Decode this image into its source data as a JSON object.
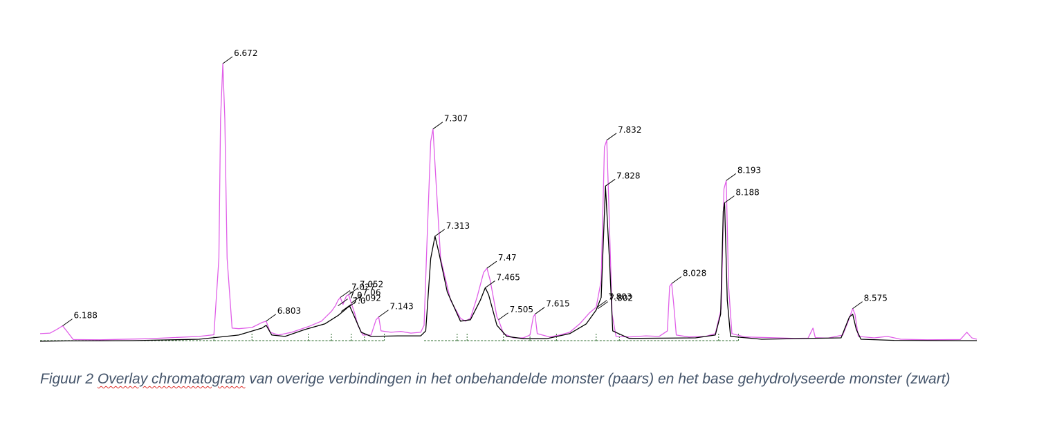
{
  "chart_data": {
    "type": "line",
    "title": "",
    "xlabel": "",
    "ylabel": "",
    "xlim": [
      6.12,
      8.95
    ],
    "ylim": [
      0,
      100
    ],
    "grid": false,
    "legend": "none",
    "series": [
      {
        "color": "#e05fe8",
        "points": [
          [
            6.12,
            3.0
          ],
          [
            6.15,
            3.2
          ],
          [
            6.17,
            4.5
          ],
          [
            6.188,
            5.8
          ],
          [
            6.2,
            4.0
          ],
          [
            6.22,
            0.9
          ],
          [
            6.3,
            0.8
          ],
          [
            6.45,
            1.2
          ],
          [
            6.6,
            2.0
          ],
          [
            6.645,
            2.6
          ],
          [
            6.66,
            30.0
          ],
          [
            6.665,
            80.0
          ],
          [
            6.672,
            100.0
          ],
          [
            6.678,
            80.0
          ],
          [
            6.685,
            30.0
          ],
          [
            6.7,
            5.0
          ],
          [
            6.72,
            4.8
          ],
          [
            6.76,
            5.2
          ],
          [
            6.79,
            7.0
          ],
          [
            6.803,
            7.5
          ],
          [
            6.815,
            3.5
          ],
          [
            6.84,
            2.5
          ],
          [
            6.88,
            3.5
          ],
          [
            6.93,
            5.5
          ],
          [
            6.97,
            7.5
          ],
          [
            7.0,
            11.0
          ],
          [
            7.012,
            13.0
          ],
          [
            7.02,
            15.0
          ],
          [
            7.027,
            16.0
          ],
          [
            7.035,
            13.5
          ],
          [
            7.045,
            16.5
          ],
          [
            7.052,
            17.0
          ],
          [
            7.06,
            14.0
          ],
          [
            7.07,
            10.5
          ],
          [
            7.08,
            6.0
          ],
          [
            7.095,
            2.5
          ],
          [
            7.12,
            2.5
          ],
          [
            7.135,
            8.0
          ],
          [
            7.143,
            9.0
          ],
          [
            7.15,
            4.0
          ],
          [
            7.18,
            3.5
          ],
          [
            7.21,
            3.8
          ],
          [
            7.24,
            3.2
          ],
          [
            7.27,
            3.5
          ],
          [
            7.28,
            6.0
          ],
          [
            7.29,
            40.0
          ],
          [
            7.3,
            72.0
          ],
          [
            7.307,
            76.5
          ],
          [
            7.315,
            60.0
          ],
          [
            7.33,
            30.0
          ],
          [
            7.36,
            15.0
          ],
          [
            7.39,
            8.5
          ],
          [
            7.405,
            7.5
          ],
          [
            7.42,
            8.5
          ],
          [
            7.44,
            16.0
          ],
          [
            7.46,
            25.0
          ],
          [
            7.47,
            26.5
          ],
          [
            7.48,
            22.0
          ],
          [
            7.5,
            9.0
          ],
          [
            7.505,
            8.0
          ],
          [
            7.52,
            3.0
          ],
          [
            7.55,
            1.5
          ],
          [
            7.58,
            1.5
          ],
          [
            7.6,
            2.5
          ],
          [
            7.61,
            9.0
          ],
          [
            7.615,
            10.0
          ],
          [
            7.622,
            3.0
          ],
          [
            7.66,
            1.8
          ],
          [
            7.69,
            2.5
          ],
          [
            7.72,
            3.5
          ],
          [
            7.75,
            6.5
          ],
          [
            7.78,
            10.5
          ],
          [
            7.8,
            12.5
          ],
          [
            7.815,
            22.0
          ],
          [
            7.825,
            70.0
          ],
          [
            7.832,
            72.5
          ],
          [
            7.838,
            50.0
          ],
          [
            7.848,
            10.0
          ],
          [
            7.86,
            2.0
          ],
          [
            7.9,
            1.8
          ],
          [
            7.95,
            2.2
          ],
          [
            7.99,
            2.0
          ],
          [
            8.015,
            4.0
          ],
          [
            8.022,
            20.0
          ],
          [
            8.028,
            21.0
          ],
          [
            8.034,
            14.0
          ],
          [
            8.042,
            2.5
          ],
          [
            8.08,
            1.8
          ],
          [
            8.13,
            2.0
          ],
          [
            8.16,
            3.0
          ],
          [
            8.178,
            12.0
          ],
          [
            8.186,
            55.0
          ],
          [
            8.193,
            58.0
          ],
          [
            8.2,
            20.0
          ],
          [
            8.21,
            3.0
          ],
          [
            8.25,
            1.8
          ],
          [
            8.35,
            1.5
          ],
          [
            8.4,
            1.3
          ],
          [
            8.44,
            1.4
          ],
          [
            8.455,
            5.0
          ],
          [
            8.462,
            1.6
          ],
          [
            8.5,
            1.4
          ],
          [
            8.545,
            2.5
          ],
          [
            8.56,
            7.0
          ],
          [
            8.575,
            12.0
          ],
          [
            8.582,
            10.0
          ],
          [
            8.592,
            2.0
          ],
          [
            8.64,
            1.5
          ],
          [
            8.68,
            2.0
          ],
          [
            8.72,
            1.0
          ],
          [
            8.8,
            0.8
          ],
          [
            8.9,
            0.9
          ],
          [
            8.92,
            3.5
          ],
          [
            8.935,
            1.5
          ],
          [
            8.95,
            1.0
          ]
        ]
      },
      {
        "color": "#000000",
        "points": [
          [
            6.12,
            0.3
          ],
          [
            6.2,
            0.4
          ],
          [
            6.4,
            0.5
          ],
          [
            6.6,
            1.0
          ],
          [
            6.72,
            2.5
          ],
          [
            6.79,
            5.0
          ],
          [
            6.803,
            6.0
          ],
          [
            6.82,
            2.5
          ],
          [
            6.86,
            2.0
          ],
          [
            6.92,
            4.5
          ],
          [
            6.98,
            6.5
          ],
          [
            7.02,
            9.5
          ],
          [
            7.04,
            11.5
          ],
          [
            7.055,
            13.0
          ],
          [
            7.07,
            9.0
          ],
          [
            7.09,
            3.5
          ],
          [
            7.12,
            2.0
          ],
          [
            7.2,
            2.2
          ],
          [
            7.27,
            2.2
          ],
          [
            7.285,
            4.0
          ],
          [
            7.3,
            30.0
          ],
          [
            7.313,
            38.0
          ],
          [
            7.325,
            32.0
          ],
          [
            7.35,
            18.0
          ],
          [
            7.39,
            7.5
          ],
          [
            7.42,
            8.0
          ],
          [
            7.45,
            15.0
          ],
          [
            7.465,
            19.5
          ],
          [
            7.475,
            17.0
          ],
          [
            7.5,
            6.0
          ],
          [
            7.53,
            2.0
          ],
          [
            7.58,
            1.2
          ],
          [
            7.65,
            1.2
          ],
          [
            7.72,
            3.0
          ],
          [
            7.77,
            6.5
          ],
          [
            7.8,
            11.5
          ],
          [
            7.815,
            16.0
          ],
          [
            7.828,
            56.0
          ],
          [
            7.84,
            30.0
          ],
          [
            7.85,
            4.0
          ],
          [
            7.9,
            1.3
          ],
          [
            8.1,
            1.5
          ],
          [
            8.16,
            2.5
          ],
          [
            8.176,
            10.0
          ],
          [
            8.184,
            47.0
          ],
          [
            8.188,
            50.0
          ],
          [
            8.196,
            15.0
          ],
          [
            8.206,
            2.0
          ],
          [
            8.3,
            1.0
          ],
          [
            8.54,
            1.5
          ],
          [
            8.565,
            9.0
          ],
          [
            8.575,
            10.0
          ],
          [
            8.586,
            4.5
          ],
          [
            8.6,
            1.0
          ],
          [
            8.7,
            0.6
          ],
          [
            8.9,
            0.5
          ],
          [
            8.95,
            0.5
          ]
        ]
      }
    ],
    "annotations": [
      {
        "label": "6.188",
        "x": 6.188,
        "y": 5.8
      },
      {
        "label": "6.672",
        "x": 6.672,
        "y": 100.0
      },
      {
        "label": "6.803",
        "x": 6.803,
        "y": 7.5
      },
      {
        "label": "7.027",
        "x": 7.027,
        "y": 16.0
      },
      {
        "label": "7.06",
        "x": 7.06,
        "y": 14.0
      },
      {
        "label": "7.052",
        "x": 7.052,
        "y": 17.0
      },
      {
        "label": "7.0",
        "x": 7.02,
        "y": 13.0
      },
      {
        "label": "7.092",
        "x": 7.045,
        "y": 12.0
      },
      {
        "label": "7.0",
        "x": 7.03,
        "y": 11.0
      },
      {
        "label": "7.143",
        "x": 7.143,
        "y": 9.0
      },
      {
        "label": "7.307",
        "x": 7.307,
        "y": 76.5
      },
      {
        "label": "7.313",
        "x": 7.313,
        "y": 38.0
      },
      {
        "label": "7.47",
        "x": 7.47,
        "y": 26.5
      },
      {
        "label": "7.465",
        "x": 7.465,
        "y": 19.5
      },
      {
        "label": "7.505",
        "x": 7.505,
        "y": 8.0
      },
      {
        "label": "7.615",
        "x": 7.615,
        "y": 10.0
      },
      {
        "label": "7.803",
        "x": 7.803,
        "y": 12.5
      },
      {
        "label": "7.802",
        "x": 7.806,
        "y": 12.0
      },
      {
        "label": "7.832",
        "x": 7.832,
        "y": 72.5
      },
      {
        "label": "7.828",
        "x": 7.828,
        "y": 56.0
      },
      {
        "label": "8.028",
        "x": 8.028,
        "y": 21.0
      },
      {
        "label": "8.193",
        "x": 8.193,
        "y": 58.0
      },
      {
        "label": "8.188",
        "x": 8.188,
        "y": 50.0
      },
      {
        "label": "8.575",
        "x": 8.575,
        "y": 12.0
      }
    ],
    "baseline_segments": [
      [
        6.12,
        6.645
      ],
      [
        6.645,
        6.76
      ],
      [
        6.76,
        6.93
      ],
      [
        6.93,
        7.0
      ],
      [
        7.0,
        7.06
      ],
      [
        7.06,
        7.1
      ],
      [
        7.1,
        7.16
      ],
      [
        7.28,
        7.38
      ],
      [
        7.38,
        7.41
      ],
      [
        7.41,
        7.52
      ],
      [
        7.52,
        7.6
      ],
      [
        7.6,
        7.68
      ],
      [
        7.68,
        7.8
      ],
      [
        7.8,
        7.87
      ],
      [
        7.87,
        8.17
      ],
      [
        8.17,
        8.23
      ]
    ]
  },
  "caption": {
    "prefix": "Figuur 2 ",
    "misspelled": "Overlay chromatogram",
    "rest": " van overige verbindingen in het onbehandelde monster (paars) en het base gehydrolyseerde monster (zwart)"
  }
}
